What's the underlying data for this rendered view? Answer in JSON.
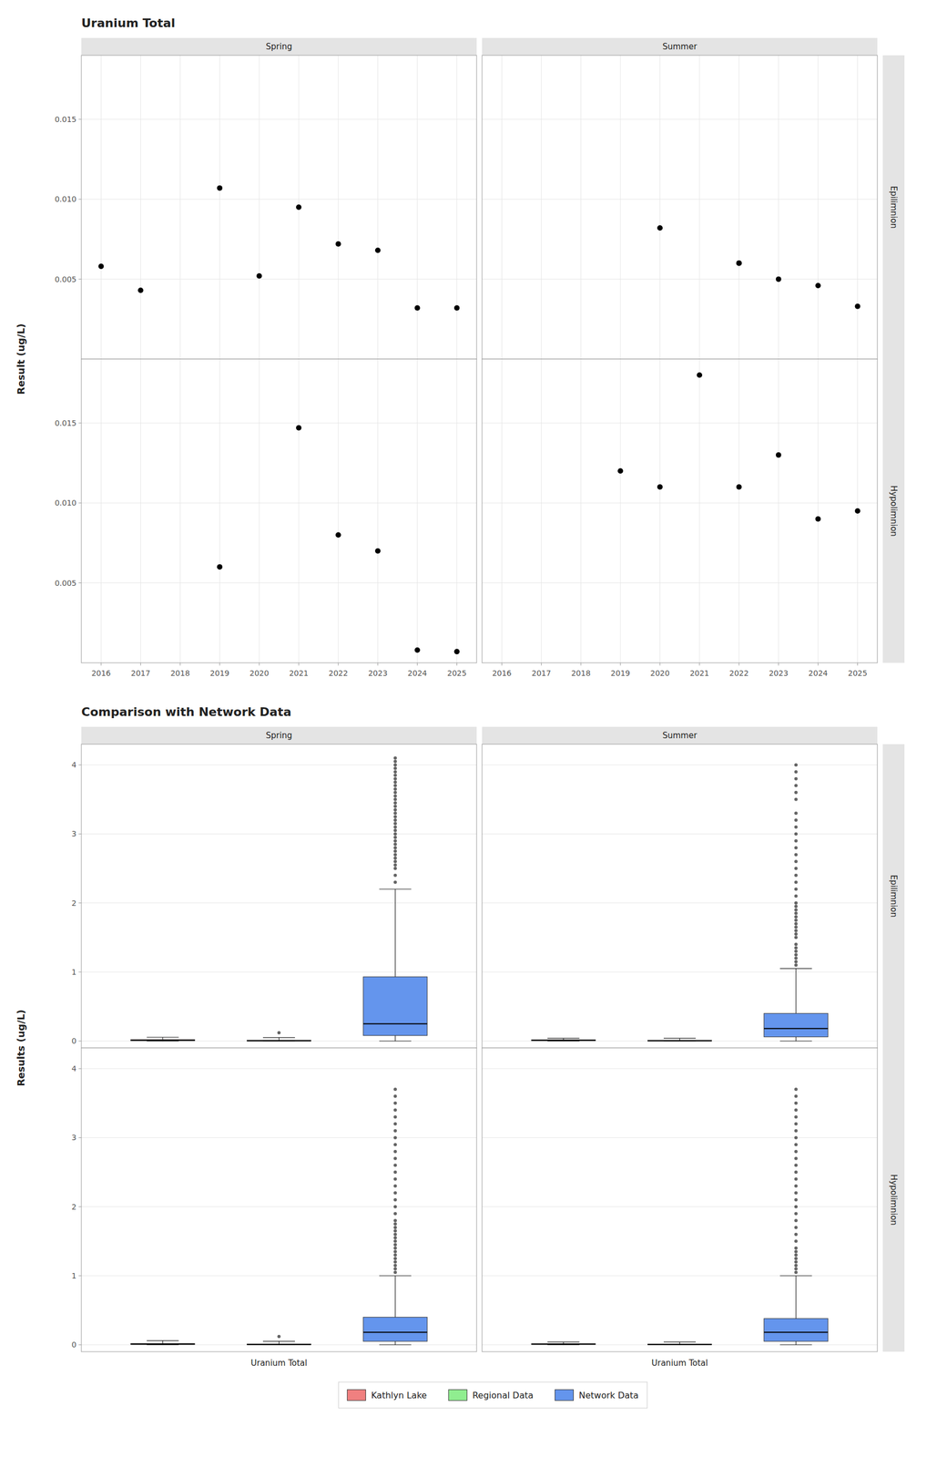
{
  "chart_data": [
    {
      "type": "scatter",
      "title": "Uranium Total",
      "ylabel": "Result (ug/L)",
      "facet_columns": [
        "Spring",
        "Summer"
      ],
      "facet_rows": [
        "Epilimnion",
        "Hypolimnion"
      ],
      "color": "#000000",
      "panels": [
        [
          {
            "x": [
              2016,
              2017,
              2019,
              2020,
              2021,
              2022,
              2023,
              2024,
              2025
            ],
            "y": [
              0.0058,
              0.0043,
              0.0107,
              0.0052,
              0.0095,
              0.0072,
              0.0068,
              0.0032,
              0.0032
            ]
          },
          {
            "x": [
              2020,
              2022,
              2022,
              2023,
              2024,
              2025
            ],
            "y": [
              0.0082,
              0.006,
              0.006,
              0.005,
              0.0046,
              0.0033
            ]
          }
        ],
        [
          {
            "x": [
              2019,
              2021,
              2022,
              2023,
              2024,
              2025
            ],
            "y": [
              0.006,
              0.0147,
              0.008,
              0.007,
              0.0008,
              0.0007
            ]
          },
          {
            "x": [
              2019,
              2020,
              2021,
              2022,
              2023,
              2024,
              2025
            ],
            "y": [
              0.012,
              0.011,
              0.018,
              0.011,
              0.013,
              0.009,
              0.0095
            ]
          }
        ]
      ],
      "xlim": [
        2015.5,
        2025.5
      ],
      "xticks": [
        2016,
        2017,
        2018,
        2019,
        2020,
        2021,
        2022,
        2023,
        2024,
        2025
      ],
      "ylim": [
        0,
        0.019
      ],
      "yticks": [
        0.005,
        {
          "value": 0.01,
          "label": "0.010"
        },
        0.015
      ],
      "grid": true
    },
    {
      "type": "box",
      "title": "Comparison with Network Data",
      "ylabel": "Results (ug/L)",
      "facet_columns": [
        "Spring",
        "Summer"
      ],
      "facet_rows": [
        "Epilimnion",
        "Hypolimnion"
      ],
      "categories": [
        "Uranium Total"
      ],
      "series": [
        {
          "name": "Kathlyn Lake",
          "color": "#f08080"
        },
        {
          "name": "Regional Data",
          "color": "#90ee90"
        },
        {
          "name": "Network Data",
          "color": "#6495ed"
        }
      ],
      "panels": [
        [
          {
            "boxes": [
              {
                "med": 0.01,
                "q1": 0.005,
                "q3": 0.02,
                "whislo": 0.0,
                "whishi": 0.055,
                "fliers": []
              },
              {
                "med": 0.005,
                "q1": 0.002,
                "q3": 0.01,
                "whislo": 0.0,
                "whishi": 0.05,
                "fliers": [
                  0.12
                ]
              },
              {
                "med": 0.25,
                "q1": 0.08,
                "q3": 0.93,
                "whislo": 0.0,
                "whishi": 2.2,
                "fliers": [
                  2.3,
                  2.4,
                  2.5,
                  2.55,
                  2.6,
                  2.65,
                  2.7,
                  2.75,
                  2.8,
                  2.85,
                  2.9,
                  2.95,
                  3.0,
                  3.05,
                  3.1,
                  3.15,
                  3.2,
                  3.25,
                  3.3,
                  3.35,
                  3.4,
                  3.45,
                  3.5,
                  3.55,
                  3.6,
                  3.65,
                  3.7,
                  3.75,
                  3.8,
                  3.85,
                  3.9,
                  3.95,
                  4.0,
                  4.05,
                  4.1
                ]
              }
            ]
          },
          {
            "boxes": [
              {
                "med": 0.01,
                "q1": 0.005,
                "q3": 0.018,
                "whislo": 0.0,
                "whishi": 0.04,
                "fliers": []
              },
              {
                "med": 0.005,
                "q1": 0.002,
                "q3": 0.009,
                "whislo": 0.0,
                "whishi": 0.04,
                "fliers": []
              },
              {
                "med": 0.18,
                "q1": 0.06,
                "q3": 0.4,
                "whislo": 0.0,
                "whishi": 1.05,
                "fliers": [
                  1.1,
                  1.15,
                  1.2,
                  1.25,
                  1.3,
                  1.35,
                  1.4,
                  1.5,
                  1.55,
                  1.6,
                  1.65,
                  1.7,
                  1.75,
                  1.8,
                  1.85,
                  1.9,
                  1.95,
                  2.0,
                  2.1,
                  2.2,
                  2.3,
                  2.4,
                  2.5,
                  2.6,
                  2.7,
                  2.8,
                  2.9,
                  3.0,
                  3.1,
                  3.2,
                  3.3,
                  3.5,
                  3.6,
                  3.7,
                  3.8,
                  3.9,
                  4.0
                ]
              }
            ]
          }
        ],
        [
          {
            "boxes": [
              {
                "med": 0.01,
                "q1": 0.004,
                "q3": 0.018,
                "whislo": 0.0,
                "whishi": 0.06,
                "fliers": []
              },
              {
                "med": 0.005,
                "q1": 0.002,
                "q3": 0.01,
                "whislo": 0.0,
                "whishi": 0.05,
                "fliers": [
                  0.12
                ]
              },
              {
                "med": 0.18,
                "q1": 0.05,
                "q3": 0.4,
                "whislo": 0.0,
                "whishi": 1.0,
                "fliers": [
                  1.05,
                  1.1,
                  1.15,
                  1.2,
                  1.25,
                  1.3,
                  1.35,
                  1.4,
                  1.45,
                  1.5,
                  1.55,
                  1.6,
                  1.65,
                  1.7,
                  1.75,
                  1.8,
                  1.9,
                  2.0,
                  2.1,
                  2.2,
                  2.3,
                  2.4,
                  2.5,
                  2.6,
                  2.7,
                  2.8,
                  2.9,
                  3.0,
                  3.1,
                  3.2,
                  3.3,
                  3.4,
                  3.5,
                  3.6,
                  3.7
                ]
              }
            ]
          },
          {
            "boxes": [
              {
                "med": 0.01,
                "q1": 0.004,
                "q3": 0.016,
                "whislo": 0.0,
                "whishi": 0.04,
                "fliers": []
              },
              {
                "med": 0.005,
                "q1": 0.002,
                "q3": 0.009,
                "whislo": 0.0,
                "whishi": 0.04,
                "fliers": []
              },
              {
                "med": 0.18,
                "q1": 0.05,
                "q3": 0.38,
                "whislo": 0.0,
                "whishi": 1.0,
                "fliers": [
                  1.05,
                  1.1,
                  1.15,
                  1.2,
                  1.25,
                  1.3,
                  1.35,
                  1.4,
                  1.5,
                  1.6,
                  1.7,
                  1.8,
                  1.9,
                  2.0,
                  2.1,
                  2.2,
                  2.3,
                  2.4,
                  2.5,
                  2.6,
                  2.7,
                  2.8,
                  2.9,
                  3.0,
                  3.1,
                  3.2,
                  3.3,
                  3.4,
                  3.5,
                  3.6,
                  3.7
                ]
              }
            ]
          }
        ]
      ],
      "ylim": [
        -0.1,
        4.3
      ],
      "yticks": [
        0,
        1,
        2,
        3,
        4
      ],
      "grid": "y",
      "legend": "bottom"
    }
  ]
}
